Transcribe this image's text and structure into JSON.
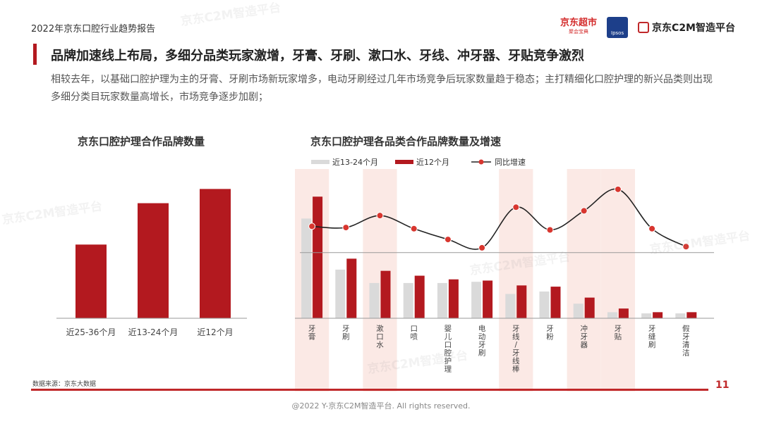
{
  "header": {
    "report_title": "2022年京东口腔行业趋势报告",
    "logos": {
      "jd_super": "京东超市",
      "jd_super_sub": "聚会宝典",
      "ipsos": "Ipsos",
      "c2m": "京东C2M智造平台"
    }
  },
  "headline": "品牌加速线上布局，多细分品类玩家激增，牙膏、牙刷、漱口水、牙线、冲牙器、牙贴竞争激烈",
  "summary": "相较去年，以基础口腔护理为主的牙膏、牙刷市场新玩家增多，电动牙刷经过几年市场竞争后玩家数量趋于稳态；主打精细化口腔护理的新兴品类则出现多细分类目玩家数量高增长，市场竞争逐步加剧；",
  "footer": {
    "source": "数据来源：京东大数据",
    "page_number": "11",
    "copyright": "@2022 Y-京东C2M智造平台. All rights reserved."
  },
  "watermark_text": "京东C2M智造平台",
  "colors": {
    "dark_red": "#b3191f",
    "grey_bar": "#dadada",
    "highlight": "#fbe9e5",
    "line": "#222222",
    "marker": "#d8362f"
  },
  "chart_data": [
    {
      "type": "bar",
      "title": "京东口腔护理合作品牌数量",
      "categories": [
        "近25-36个月",
        "近13-24个月",
        "近12个月"
      ],
      "values": [
        57,
        89,
        100
      ],
      "ylim": [
        0,
        110
      ],
      "grid": false
    },
    {
      "type": "bar+line",
      "title": "京东口腔护理各品类合作品牌数量及增速",
      "legend_position": "top-left",
      "categories": [
        "牙膏",
        "牙刷",
        "漱口水",
        "口喷",
        "婴儿口腔护理",
        "电动牙刷",
        "牙线/牙线棒",
        "牙粉",
        "冲牙器",
        "牙贴",
        "牙缝刷",
        "假牙清洁"
      ],
      "category_vertical": [
        "牙\n膏",
        "牙\n刷",
        "漱\n口\n水",
        "口\n喷",
        "婴\n儿\n口\n腔\n护\n理",
        "电\n动\n牙\n刷",
        "牙\n线\n/\n牙\n线\n棒",
        "牙\n粉",
        "冲\n牙\n器",
        "牙\n贴",
        "牙\n缝\n刷",
        "假\n牙\n清\n洁"
      ],
      "highlighted": [
        0,
        2,
        6,
        8,
        9
      ],
      "series": [
        {
          "name": "近13-24个月",
          "kind": "bar",
          "values": [
            82,
            40,
            29,
            29,
            29,
            30,
            20,
            22,
            12,
            5,
            4,
            4
          ]
        },
        {
          "name": "近12个月",
          "kind": "bar",
          "values": [
            100,
            49,
            39,
            35,
            32,
            31,
            27,
            26,
            17,
            8,
            5,
            5
          ]
        },
        {
          "name": "同比增速",
          "kind": "line",
          "values": [
            22,
            21,
            31,
            20,
            11,
            4,
            38,
            19,
            35,
            53,
            20,
            5
          ]
        }
      ],
      "bar_ylim": [
        0,
        110
      ],
      "line_ylim": [
        -55,
        70
      ],
      "line_reference": 0,
      "grid": false
    }
  ]
}
